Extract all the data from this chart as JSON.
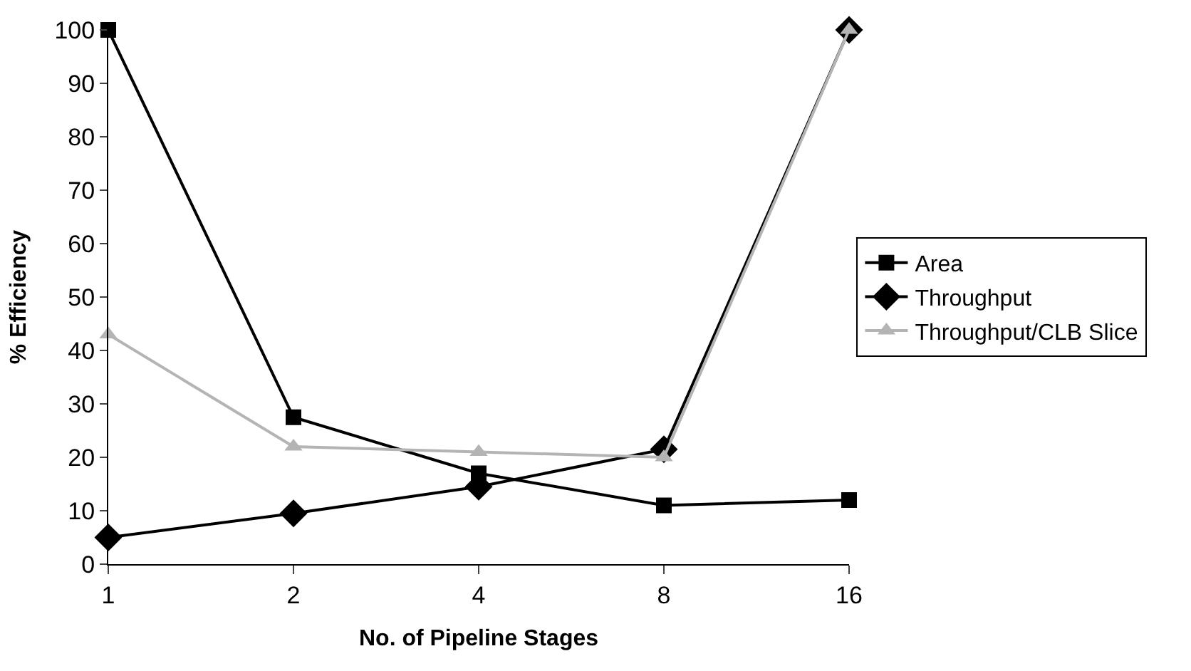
{
  "chart_data": {
    "type": "line",
    "xlabel": "No. of Pipeline Stages",
    "ylabel": "% Efficiency",
    "categories": [
      "1",
      "2",
      "4",
      "8",
      "16"
    ],
    "series": [
      {
        "name": "Area",
        "color": "#000000",
        "marker": "square",
        "values": [
          100,
          27.5,
          17,
          11,
          12
        ]
      },
      {
        "name": "Throughput",
        "color": "#000000",
        "marker": "diamond",
        "values": [
          5,
          9.5,
          14.5,
          21.5,
          100
        ]
      },
      {
        "name": "Throughput/CLB Slice",
        "color": "#b4b4b4",
        "marker": "triangle",
        "values": [
          43,
          22,
          21,
          20,
          100
        ]
      }
    ],
    "ylim": [
      0,
      100
    ],
    "yticks": [
      0,
      10,
      20,
      30,
      40,
      50,
      60,
      70,
      80,
      90,
      100
    ],
    "grid": false,
    "legend": "right"
  }
}
